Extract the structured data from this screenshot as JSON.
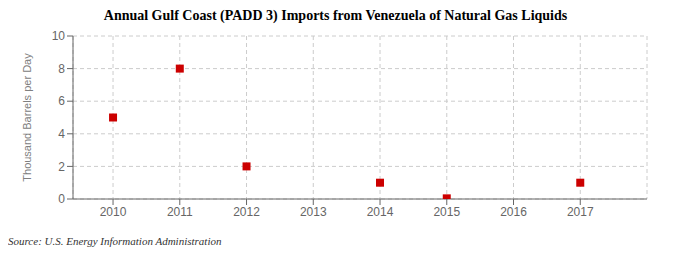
{
  "chart_data": {
    "type": "scatter",
    "title": "Annual Gulf Coast (PADD 3) Imports from Venezuela of Natural Gas Liquids",
    "ylabel": "Thousand Barrels per Day",
    "annotations": [
      "Source: U.S. Energy Information Administration"
    ],
    "x": [
      2010,
      2011,
      2012,
      2014,
      2015,
      2017
    ],
    "values": [
      5,
      8,
      2,
      1,
      0.04,
      1
    ],
    "color": "#cc0000",
    "marker": "square",
    "xlim": [
      2009.4,
      2018.0
    ],
    "xticks": [
      2010,
      2011,
      2012,
      2013,
      2014,
      2015,
      2016,
      2017
    ],
    "ylim": [
      0,
      10
    ],
    "yticks": [
      0,
      2,
      4,
      6,
      8,
      10
    ],
    "grid": true
  }
}
